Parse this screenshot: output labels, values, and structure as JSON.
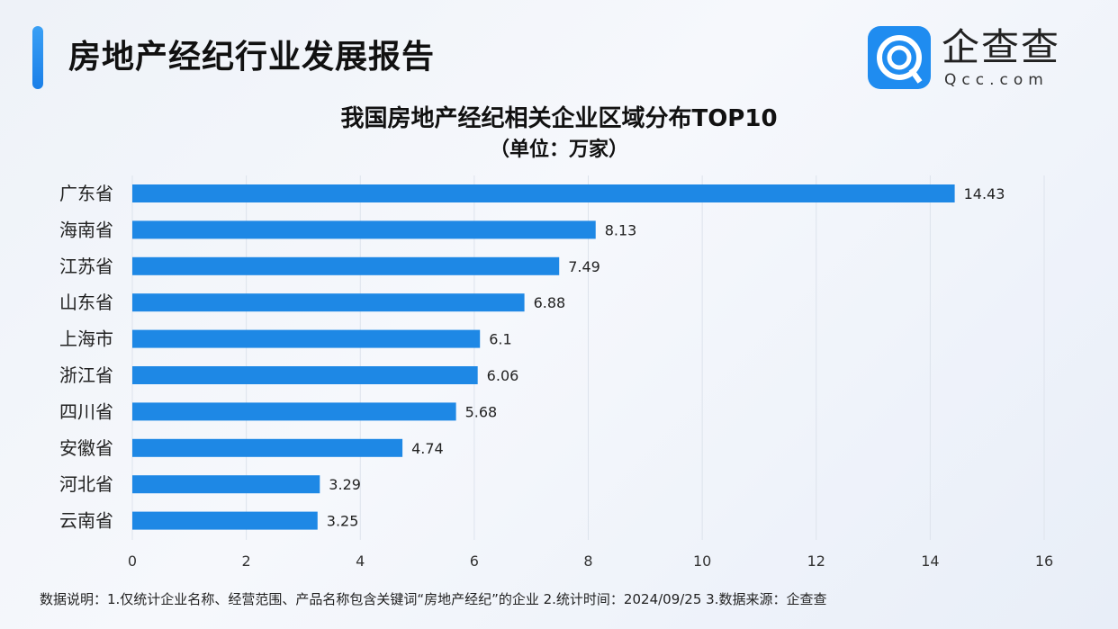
{
  "header": {
    "title": "房地产经纪行业发展报告",
    "brand": "企查查",
    "brand_url": "Qcc.com"
  },
  "chart_data": {
    "type": "bar",
    "orientation": "horizontal",
    "title": "我国房地产经纪相关企业区域分布TOP10",
    "subtitle": "（单位：万家）",
    "categories": [
      "广东省",
      "海南省",
      "江苏省",
      "山东省",
      "上海市",
      "浙江省",
      "四川省",
      "安徽省",
      "河北省",
      "云南省"
    ],
    "values": [
      14.43,
      8.13,
      7.49,
      6.88,
      6.1,
      6.06,
      5.68,
      4.74,
      3.29,
      3.25
    ],
    "value_labels": [
      "14.43",
      "8.13",
      "7.49",
      "6.88",
      "6.1",
      "6.06",
      "5.68",
      "4.74",
      "3.29",
      "3.25"
    ],
    "xlim": [
      0,
      16
    ],
    "xticks": [
      "0",
      "2",
      "4",
      "6",
      "8",
      "10",
      "12",
      "14",
      "16"
    ],
    "grid": true,
    "bar_color": "#1e88e5"
  },
  "footer": {
    "note": "数据说明：1.仅统计企业名称、经营范围、产品名称包含关键词“房地产经纪”的企业   2.统计时间：2024/09/25    3.数据来源：企查查"
  }
}
